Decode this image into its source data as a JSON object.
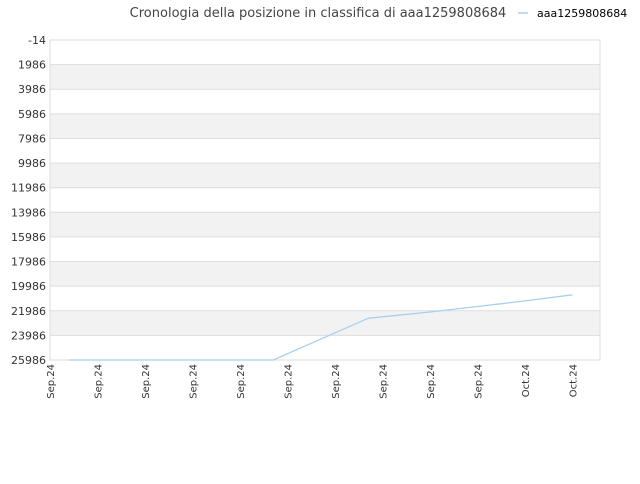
{
  "chart_data": {
    "type": "line",
    "title": "Cronologia della posizione in classifica di aaa1259808684",
    "xlabel": "",
    "ylabel": "",
    "y_inverted": true,
    "ylim": [
      -14,
      25986
    ],
    "y_ticks": [
      "-14",
      "1986",
      "3986",
      "5986",
      "7986",
      "9986",
      "11986",
      "13986",
      "15986",
      "17986",
      "19986",
      "21986",
      "23986",
      "25986"
    ],
    "x_ticks": [
      "Sep.24",
      "Sep.24",
      "Sep.24",
      "Sep.24",
      "Sep.24",
      "Sep.24",
      "Sep.24",
      "Sep.24",
      "Sep.24",
      "Sep.24",
      "Oct.24",
      "Oct.24"
    ],
    "grid": true,
    "legend_position": "top-right",
    "colors": {
      "series": "#a8cff0",
      "band": "#f2f2f2",
      "grid": "#dddddd",
      "text": "#333333"
    },
    "series": [
      {
        "name": "aaa1259808684",
        "points": [
          [
            0.4,
            25986
          ],
          [
            1.0,
            25986
          ],
          [
            2.0,
            25986
          ],
          [
            3.0,
            25986
          ],
          [
            4.0,
            25986
          ],
          [
            4.7,
            25986
          ],
          [
            6.7,
            22586
          ],
          [
            8.0,
            22086
          ],
          [
            9.0,
            21636
          ],
          [
            10.0,
            21186
          ],
          [
            11.0,
            20686
          ]
        ]
      }
    ]
  }
}
